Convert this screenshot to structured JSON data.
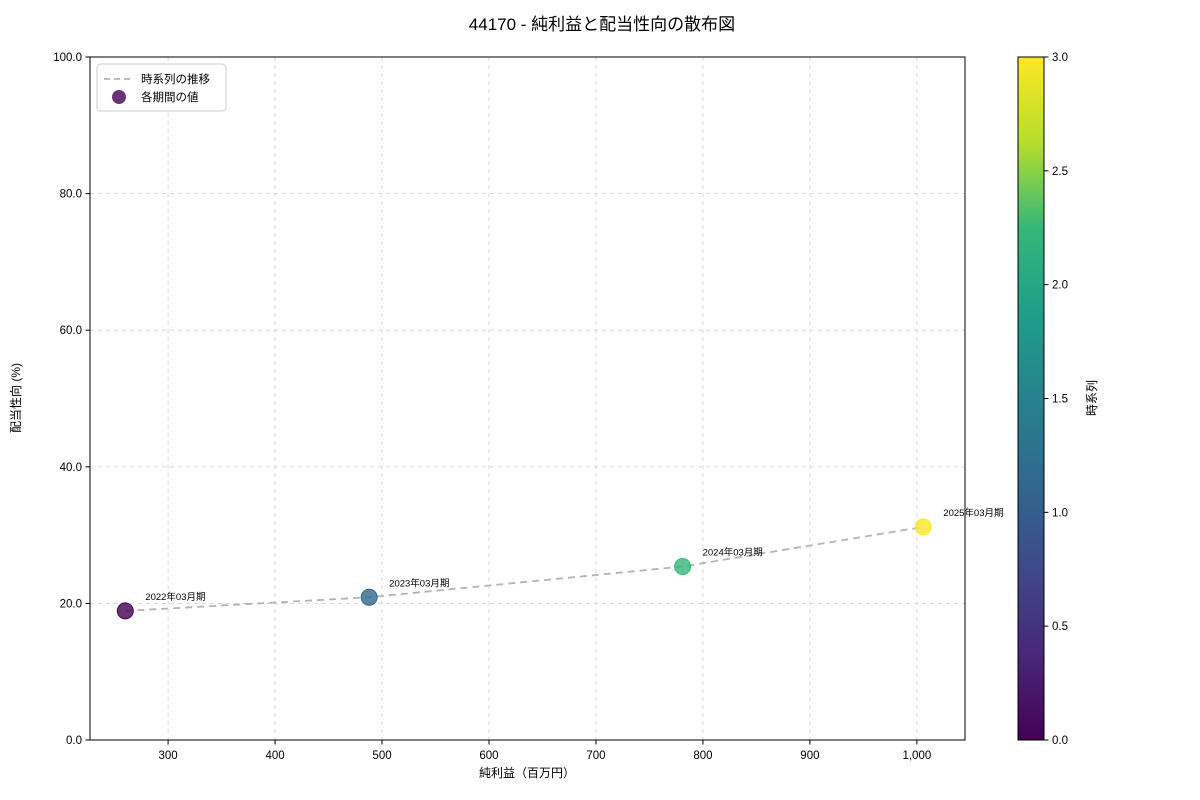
{
  "title": "44170 - 純利益と配当性向の散布図",
  "legend": {
    "line_label": "時系列の推移",
    "marker_label": "各期間の値"
  },
  "colorbar": {
    "label": "時系列",
    "colormap": "viridis",
    "vmin": 0,
    "vmax": 3,
    "tick_values": [
      0,
      0.5,
      1,
      1.5,
      2,
      2.5,
      3
    ],
    "tick_labels": [
      "0.0",
      "0.5",
      "1.0",
      "1.5",
      "2.0",
      "2.5",
      "3.0"
    ],
    "stops": [
      "#440154",
      "#482878",
      "#3e4989",
      "#31688e",
      "#26828e",
      "#1f9e89",
      "#35b779",
      "#b5de2b",
      "#fde725"
    ]
  },
  "chart_data": {
    "type": "scatter",
    "title": "44170 - 純利益と配当性向の散布図",
    "xlabel": "純利益（百万円）",
    "ylabel": "配当性向 (%)",
    "xlim": [
      227,
      1045
    ],
    "ylim": [
      0,
      100
    ],
    "grid": true,
    "grid_style": "dashed",
    "legend_position": "upper left",
    "x_ticks": {
      "values": [
        300,
        400,
        500,
        600,
        700,
        800,
        900,
        1000
      ],
      "labels": [
        "300",
        "400",
        "500",
        "600",
        "700",
        "800",
        "900",
        "1,000"
      ]
    },
    "y_ticks": {
      "values": [
        0,
        20,
        40,
        60,
        80,
        100
      ],
      "labels": [
        "0.0",
        "20.0",
        "40.0",
        "60.0",
        "80.0",
        "100.0"
      ]
    },
    "trend_line": {
      "name": "時系列の推移",
      "style": "dashed",
      "color": "#b3b3b3"
    },
    "series": [
      {
        "name": "各期間の値",
        "points": [
          {
            "label": "2022年03月期",
            "x": 260,
            "y": 18.9,
            "t": 0,
            "color": "#440154"
          },
          {
            "label": "2023年03月期",
            "x": 488,
            "y": 20.9,
            "t": 1,
            "color": "#31688e"
          },
          {
            "label": "2024年03月期",
            "x": 781,
            "y": 25.4,
            "t": 2,
            "color": "#35b779"
          },
          {
            "label": "2025年03月期",
            "x": 1006,
            "y": 31.2,
            "t": 3,
            "color": "#fde725"
          }
        ]
      }
    ]
  }
}
